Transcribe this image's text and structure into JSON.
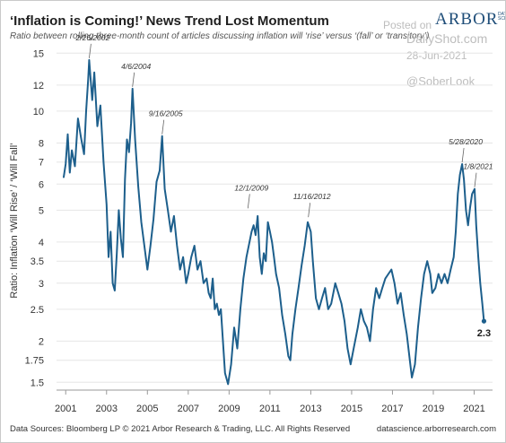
{
  "header": {
    "title": "‘Inflation is Coming!’ News Trend Lost Momentum",
    "subtitle": "Ratio between rolling three-month count of articles discussing inflation will ‘rise’ versus ‘(fall’ or ‘transitory’)"
  },
  "logo": {
    "main": "ARBOR",
    "sub": "DATA SCIENCE"
  },
  "watermark": {
    "posted": "Posted on",
    "site": "DailyShot.com",
    "date": "28-Jun-2021",
    "handle": "@SoberLook"
  },
  "footer": {
    "source": "Data Sources: Bloomberg LP © 2021 Arbor Research & Trading, LLC. All Rights Reserved",
    "site": "datascience.arborresearch.com"
  },
  "colors": {
    "line": "#1d5f8c",
    "grid": "#e6e6e6",
    "axis": "#9a9a9a"
  },
  "chart_data": {
    "type": "line",
    "title": "‘Inflation is Coming!’ News Trend Lost Momentum",
    "ylabel": "Ratio: Inflation ‘Will Rise’ / ‘Will Fall’",
    "xlabel": "",
    "y_scale": "log",
    "ylim": [
      1.42,
      15.6
    ],
    "xlim": [
      2000.55,
      2021.9
    ],
    "y_ticks": [
      1.5,
      1.75,
      2,
      2.5,
      3,
      3.5,
      4,
      5,
      6,
      7,
      8,
      10,
      12,
      15
    ],
    "x_ticks": [
      2001,
      2003,
      2005,
      2007,
      2009,
      2011,
      2013,
      2015,
      2017,
      2019,
      2021
    ],
    "grid": "horizontal",
    "series": [
      {
        "name": "",
        "points": [
          [
            2000.9,
            6.3
          ],
          [
            2001.0,
            6.9
          ],
          [
            2001.1,
            8.5
          ],
          [
            2001.2,
            6.5
          ],
          [
            2001.3,
            7.6
          ],
          [
            2001.45,
            6.8
          ],
          [
            2001.6,
            9.5
          ],
          [
            2001.75,
            8.3
          ],
          [
            2001.9,
            7.4
          ],
          [
            2002.0,
            10.0
          ],
          [
            2002.1,
            12.5
          ],
          [
            2002.15,
            14.3
          ],
          [
            2002.3,
            10.8
          ],
          [
            2002.4,
            13.1
          ],
          [
            2002.55,
            9.0
          ],
          [
            2002.7,
            10.4
          ],
          [
            2002.85,
            7.0
          ],
          [
            2003.0,
            5.2
          ],
          [
            2003.1,
            3.6
          ],
          [
            2003.2,
            4.3
          ],
          [
            2003.3,
            3.0
          ],
          [
            2003.4,
            2.85
          ],
          [
            2003.5,
            3.7
          ],
          [
            2003.6,
            5.0
          ],
          [
            2003.7,
            4.1
          ],
          [
            2003.8,
            3.6
          ],
          [
            2003.9,
            6.2
          ],
          [
            2004.0,
            8.2
          ],
          [
            2004.1,
            7.5
          ],
          [
            2004.2,
            9.2
          ],
          [
            2004.27,
            11.7
          ],
          [
            2004.4,
            8.2
          ],
          [
            2004.55,
            5.9
          ],
          [
            2004.7,
            4.6
          ],
          [
            2004.85,
            3.9
          ],
          [
            2005.0,
            3.3
          ],
          [
            2005.15,
            3.9
          ],
          [
            2005.3,
            4.7
          ],
          [
            2005.45,
            6.1
          ],
          [
            2005.6,
            6.6
          ],
          [
            2005.72,
            8.4
          ],
          [
            2005.85,
            5.8
          ],
          [
            2006.0,
            5.0
          ],
          [
            2006.15,
            4.3
          ],
          [
            2006.3,
            4.8
          ],
          [
            2006.45,
            3.9
          ],
          [
            2006.6,
            3.3
          ],
          [
            2006.75,
            3.6
          ],
          [
            2006.9,
            3.0
          ],
          [
            2007.0,
            3.2
          ],
          [
            2007.15,
            3.6
          ],
          [
            2007.3,
            3.9
          ],
          [
            2007.45,
            3.3
          ],
          [
            2007.6,
            3.5
          ],
          [
            2007.75,
            3.0
          ],
          [
            2007.9,
            3.1
          ],
          [
            2008.0,
            2.8
          ],
          [
            2008.1,
            2.7
          ],
          [
            2008.2,
            3.1
          ],
          [
            2008.3,
            2.5
          ],
          [
            2008.4,
            2.6
          ],
          [
            2008.5,
            2.4
          ],
          [
            2008.6,
            2.5
          ],
          [
            2008.7,
            2.0
          ],
          [
            2008.8,
            1.6
          ],
          [
            2008.95,
            1.48
          ],
          [
            2009.1,
            1.7
          ],
          [
            2009.25,
            2.2
          ],
          [
            2009.4,
            1.9
          ],
          [
            2009.55,
            2.5
          ],
          [
            2009.7,
            3.1
          ],
          [
            2009.85,
            3.6
          ],
          [
            2010.0,
            4.0
          ],
          [
            2010.1,
            4.3
          ],
          [
            2010.2,
            4.5
          ],
          [
            2010.3,
            4.2
          ],
          [
            2010.4,
            4.8
          ],
          [
            2010.5,
            3.6
          ],
          [
            2010.6,
            3.2
          ],
          [
            2010.7,
            3.7
          ],
          [
            2010.8,
            3.5
          ],
          [
            2010.9,
            4.6
          ],
          [
            2011.0,
            4.3
          ],
          [
            2011.1,
            4.0
          ],
          [
            2011.2,
            3.6
          ],
          [
            2011.3,
            3.2
          ],
          [
            2011.45,
            2.9
          ],
          [
            2011.6,
            2.4
          ],
          [
            2011.75,
            2.1
          ],
          [
            2011.9,
            1.8
          ],
          [
            2012.0,
            1.75
          ],
          [
            2012.1,
            2.1
          ],
          [
            2012.25,
            2.5
          ],
          [
            2012.4,
            2.9
          ],
          [
            2012.55,
            3.4
          ],
          [
            2012.7,
            3.9
          ],
          [
            2012.85,
            4.6
          ],
          [
            2013.0,
            4.3
          ],
          [
            2013.1,
            3.5
          ],
          [
            2013.25,
            2.7
          ],
          [
            2013.4,
            2.5
          ],
          [
            2013.55,
            2.7
          ],
          [
            2013.7,
            2.9
          ],
          [
            2013.85,
            2.5
          ],
          [
            2014.0,
            2.6
          ],
          [
            2014.2,
            3.0
          ],
          [
            2014.35,
            2.8
          ],
          [
            2014.5,
            2.6
          ],
          [
            2014.65,
            2.3
          ],
          [
            2014.8,
            1.9
          ],
          [
            2014.95,
            1.7
          ],
          [
            2015.1,
            1.9
          ],
          [
            2015.3,
            2.2
          ],
          [
            2015.45,
            2.5
          ],
          [
            2015.6,
            2.3
          ],
          [
            2015.75,
            2.2
          ],
          [
            2015.9,
            2.0
          ],
          [
            2016.05,
            2.5
          ],
          [
            2016.2,
            2.9
          ],
          [
            2016.35,
            2.7
          ],
          [
            2016.5,
            2.9
          ],
          [
            2016.65,
            3.1
          ],
          [
            2016.8,
            3.2
          ],
          [
            2016.95,
            3.3
          ],
          [
            2017.1,
            3.0
          ],
          [
            2017.25,
            2.6
          ],
          [
            2017.4,
            2.8
          ],
          [
            2017.55,
            2.4
          ],
          [
            2017.7,
            2.1
          ],
          [
            2017.85,
            1.75
          ],
          [
            2017.95,
            1.55
          ],
          [
            2018.1,
            1.7
          ],
          [
            2018.25,
            2.2
          ],
          [
            2018.4,
            2.7
          ],
          [
            2018.55,
            3.2
          ],
          [
            2018.7,
            3.5
          ],
          [
            2018.85,
            3.2
          ],
          [
            2018.95,
            2.8
          ],
          [
            2019.1,
            2.9
          ],
          [
            2019.25,
            3.2
          ],
          [
            2019.4,
            3.0
          ],
          [
            2019.55,
            3.2
          ],
          [
            2019.7,
            3.0
          ],
          [
            2019.85,
            3.3
          ],
          [
            2020.0,
            3.6
          ],
          [
            2020.1,
            4.3
          ],
          [
            2020.2,
            5.6
          ],
          [
            2020.3,
            6.4
          ],
          [
            2020.41,
            6.9
          ],
          [
            2020.5,
            6.2
          ],
          [
            2020.6,
            5.0
          ],
          [
            2020.7,
            4.5
          ],
          [
            2020.8,
            5.1
          ],
          [
            2020.9,
            5.6
          ],
          [
            2021.02,
            5.8
          ],
          [
            2021.1,
            4.5
          ],
          [
            2021.2,
            3.6
          ],
          [
            2021.3,
            3.0
          ],
          [
            2021.4,
            2.6
          ],
          [
            2021.48,
            2.3
          ]
        ]
      }
    ],
    "annotations": [
      {
        "label": "2/26/2002",
        "x": 2002.15,
        "y": 14.3
      },
      {
        "label": "4/6/2004",
        "x": 2004.27,
        "y": 11.7
      },
      {
        "label": "9/16/2005",
        "x": 2005.72,
        "y": 8.4
      },
      {
        "label": "12/1/2009",
        "x": 2009.92,
        "y": 5.0
      },
      {
        "label": "11/16/2012",
        "x": 2012.88,
        "y": 4.7
      },
      {
        "label": "5/28/2020",
        "x": 2020.41,
        "y": 6.9
      },
      {
        "label": "1/8/2021",
        "x": 2021.02,
        "y": 5.8
      }
    ],
    "end_label": {
      "text": "2.3",
      "x": 2021.48,
      "y": 2.3
    }
  }
}
